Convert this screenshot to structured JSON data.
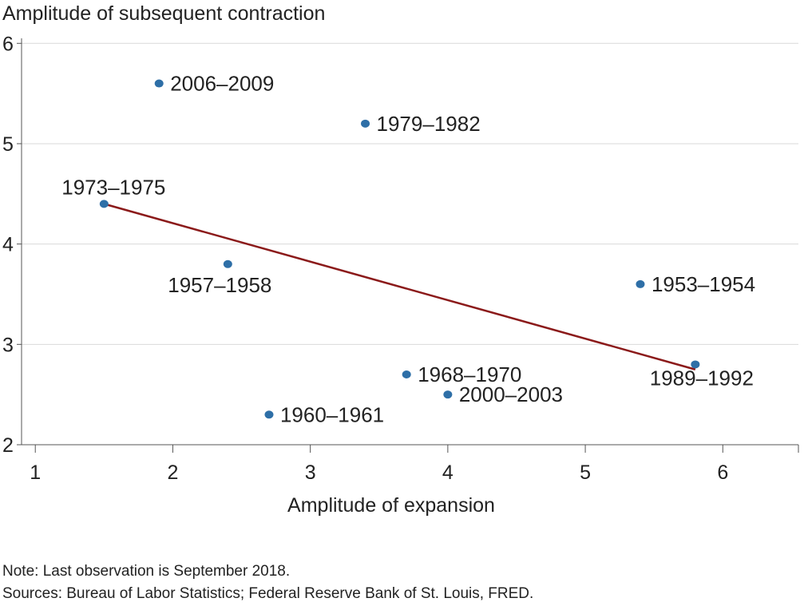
{
  "chart_data": {
    "type": "scatter",
    "ylabel": "Amplitude of subsequent contraction",
    "xlabel": "Amplitude of expansion",
    "xlim": [
      0.9,
      6.55
    ],
    "ylim": [
      2.0,
      6.05
    ],
    "xticks": [
      1,
      2,
      3,
      4,
      5,
      6
    ],
    "yticks": [
      2,
      3,
      4,
      5,
      6
    ],
    "grid": "horizontal",
    "colors": {
      "points": "#2e6fa7",
      "trend": "#8b1a1a",
      "grid": "#d9d9d9",
      "axis": "#555555"
    },
    "points": [
      {
        "label": "2006–2009",
        "x": 1.9,
        "y": 5.6
      },
      {
        "label": "1979–1982",
        "x": 3.4,
        "y": 5.2
      },
      {
        "label": "1973–1975",
        "x": 1.5,
        "y": 4.4
      },
      {
        "label": "1957–1958",
        "x": 2.4,
        "y": 3.8
      },
      {
        "label": "1953–1954",
        "x": 5.4,
        "y": 3.6
      },
      {
        "label": "1989–1992",
        "x": 5.8,
        "y": 2.8
      },
      {
        "label": "1968–1970",
        "x": 3.7,
        "y": 2.7
      },
      {
        "label": "2000–2003",
        "x": 4.0,
        "y": 2.5
      },
      {
        "label": "1960–1961",
        "x": 2.7,
        "y": 2.3
      }
    ],
    "trendline": {
      "x": [
        1.5,
        5.8
      ],
      "y": [
        4.4,
        2.75
      ]
    }
  },
  "notes": {
    "note": "Note: Last observation is September 2018.",
    "sources": "Sources: Bureau of Labor Statistics; Federal Reserve Bank of St. Louis, FRED."
  }
}
